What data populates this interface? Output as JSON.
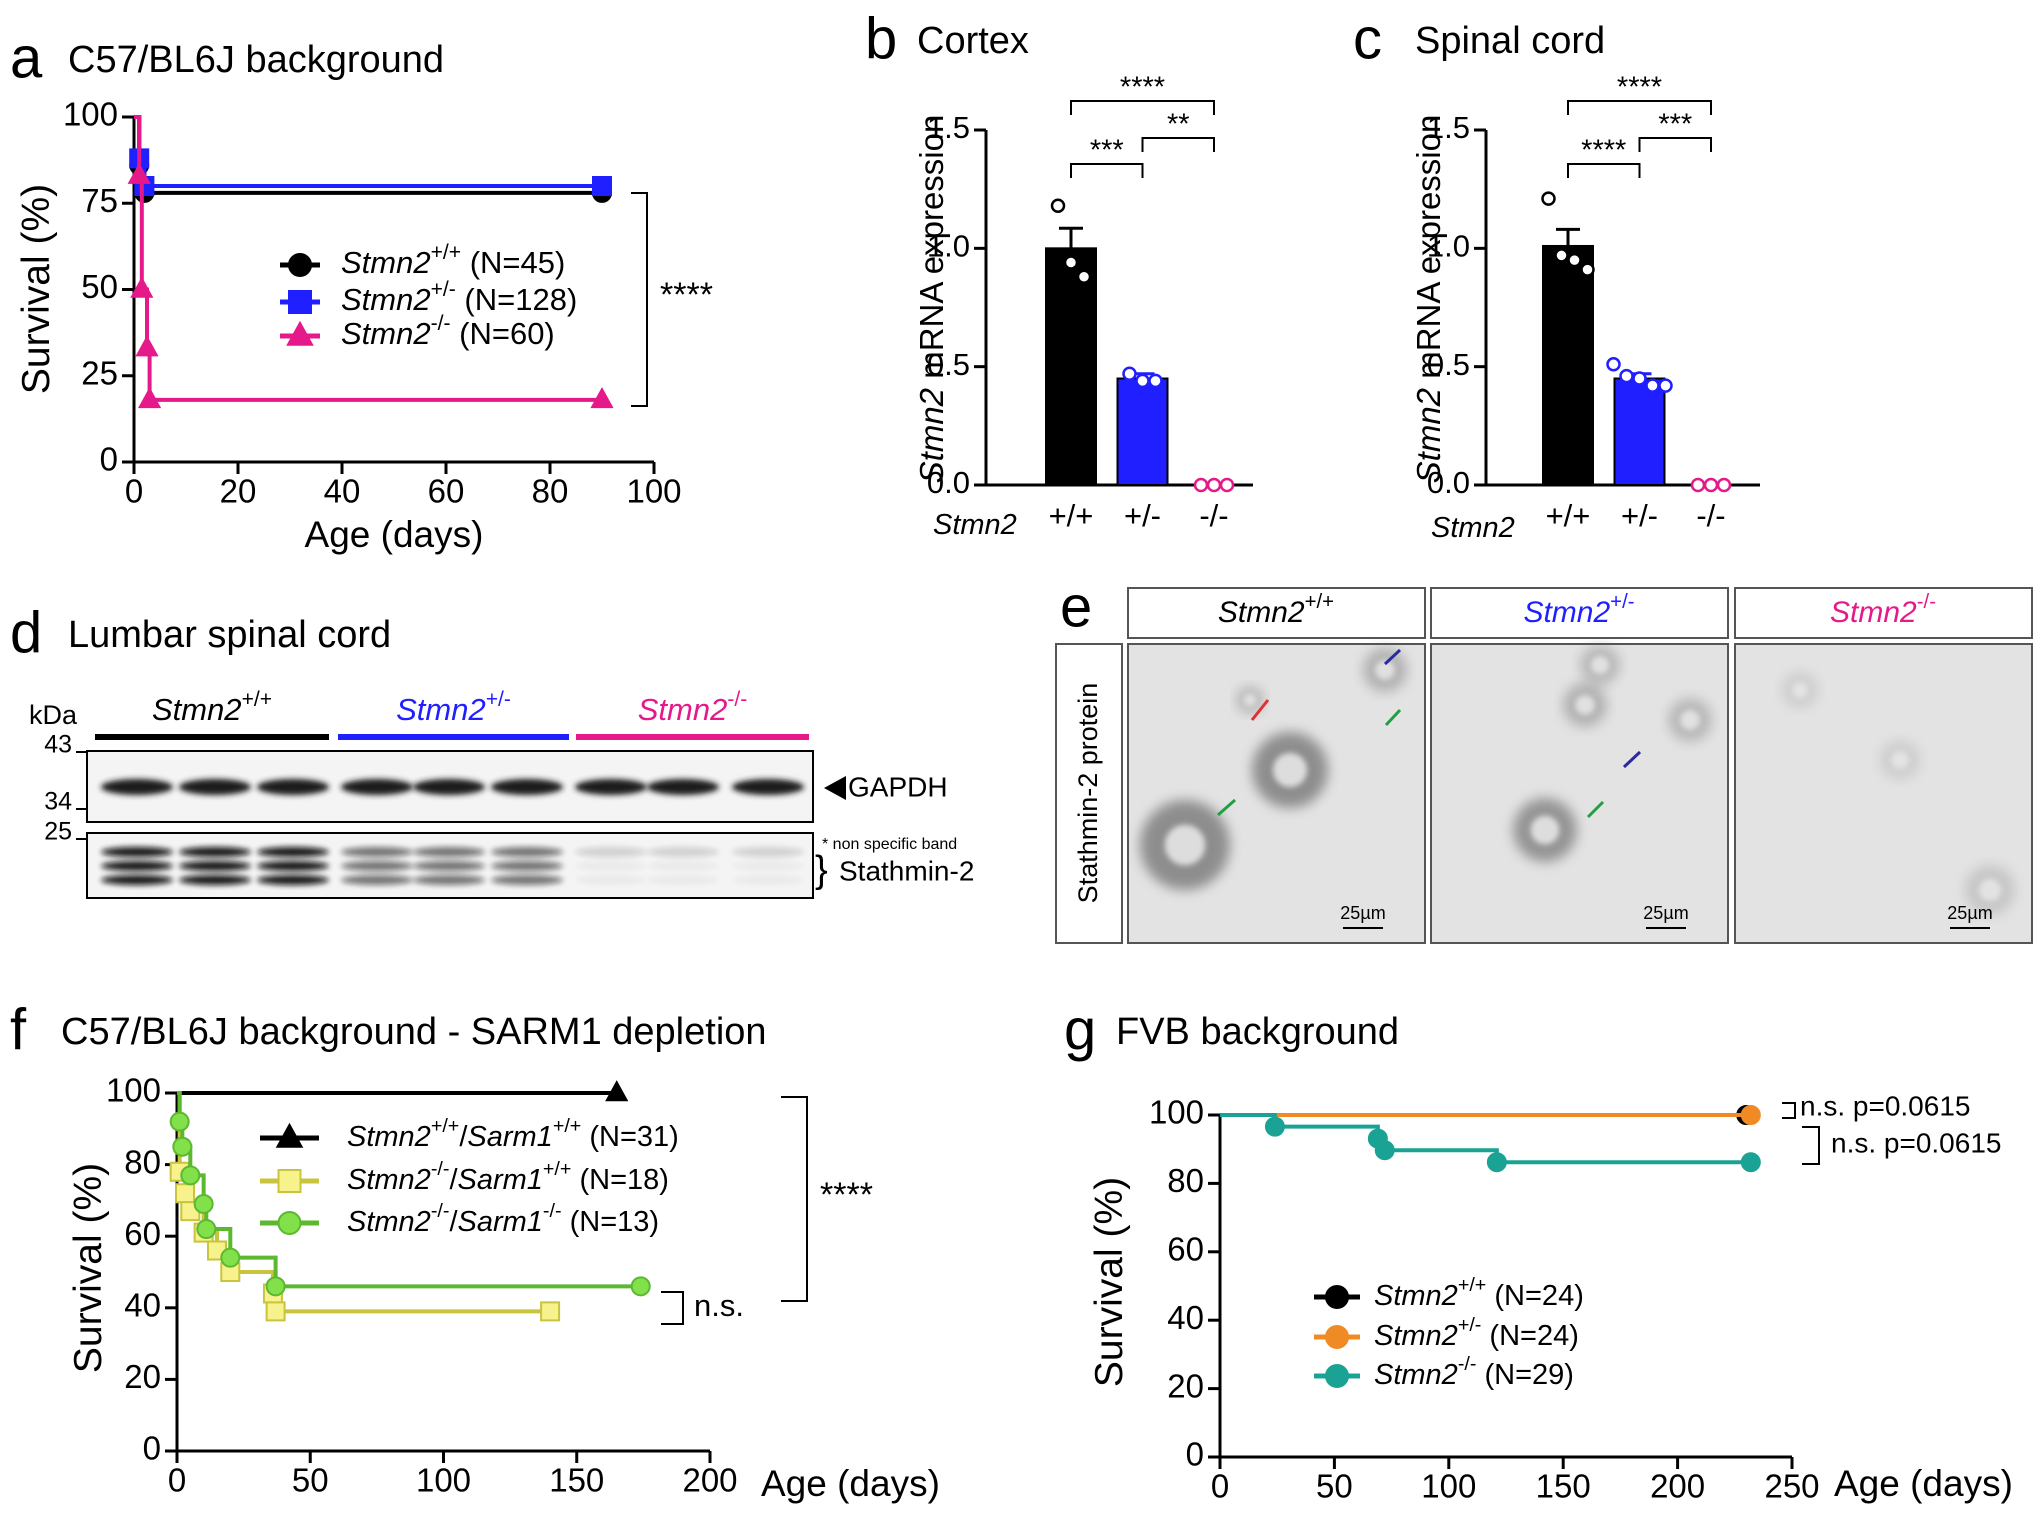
{
  "chart_data": [
    {
      "panel": "a",
      "type": "line",
      "step": true,
      "title": "C57/BL6J background",
      "xlabel": "Age (days)",
      "ylabel": "Survival (%)",
      "xlim": [
        0,
        100
      ],
      "xticks": [
        0,
        20,
        40,
        60,
        80,
        100
      ],
      "ylim": [
        0,
        100
      ],
      "yticks": [
        0,
        25,
        50,
        75,
        100
      ],
      "series": [
        {
          "name": "Stmn2+/+ (N=45)",
          "color": "#000000",
          "fill": "#000000",
          "marker": "circle",
          "x": [
            0,
            1,
            2,
            90
          ],
          "values": [
            100,
            86,
            78,
            78
          ]
        },
        {
          "name": "Stmn2+/- (N=128)",
          "color": "#1f1fff",
          "fill": "#1f1fff",
          "marker": "square",
          "x": [
            0,
            1,
            2,
            90
          ],
          "values": [
            100,
            88,
            80,
            80
          ]
        },
        {
          "name": "Stmn2-/- (N=60)",
          "color": "#e5198a",
          "fill": "#e5198a",
          "marker": "triangle",
          "x": [
            0,
            1,
            1.5,
            2.5,
            3,
            90
          ],
          "values": [
            100,
            83,
            50,
            33,
            18,
            18
          ]
        }
      ],
      "annotations": [
        "****"
      ]
    },
    {
      "panel": "b",
      "type": "bar",
      "title": "Cortex",
      "xlabel": "Stmn2",
      "ylabel": "Stmn2 mRNA expression",
      "categories": [
        "+/+",
        "+/-",
        "-/-"
      ],
      "values": [
        1.0,
        0.45,
        0
      ],
      "errors": [
        0.085,
        0.02,
        0
      ],
      "points": [
        [
          1.18,
          0.94,
          0.88
        ],
        [
          0.47,
          0.44,
          0.44
        ],
        [
          0,
          0,
          0
        ]
      ],
      "colors": [
        "#000000",
        "#1f1fff",
        "#e5198a"
      ],
      "ylim": [
        0,
        1.5
      ],
      "yticks": [
        {
          "value": 0,
          "label": "0.0"
        },
        0.5,
        {
          "value": 1,
          "label": "1.0"
        },
        1.5
      ],
      "annotations": [
        "****",
        "***",
        "**"
      ]
    },
    {
      "panel": "c",
      "type": "bar",
      "title": "Spinal cord",
      "xlabel": "Stmn2",
      "ylabel": "Stmn2 mRNA expression",
      "categories": [
        "+/+",
        "+/-",
        "-/-"
      ],
      "values": [
        1.01,
        0.45,
        0
      ],
      "errors": [
        0.07,
        0.02,
        0
      ],
      "points": [
        [
          1.21,
          0.97,
          0.95,
          0.91
        ],
        [
          0.51,
          0.46,
          0.45,
          0.42,
          0.42
        ],
        [
          0,
          0,
          0
        ]
      ],
      "colors": [
        "#000000",
        "#1f1fff",
        "#e5198a"
      ],
      "ylim": [
        0,
        1.5
      ],
      "yticks": [
        {
          "value": 0,
          "label": "0.0"
        },
        0.5,
        {
          "value": 1,
          "label": "1.0"
        },
        1.5
      ],
      "annotations": [
        "****",
        "****",
        "***"
      ]
    },
    {
      "panel": "f",
      "type": "line",
      "step": true,
      "title": "C57/BL6J background - SARM1 depletion",
      "xlabel": "Age (days)",
      "ylabel": "Survival (%)",
      "xlim": [
        0,
        200
      ],
      "xticks": [
        0,
        50,
        100,
        150,
        200
      ],
      "ylim": [
        0,
        100
      ],
      "yticks": [
        0,
        20,
        40,
        60,
        80,
        100
      ],
      "series": [
        {
          "name": "Stmn2+/+/Sarm1+/+ (N=31)",
          "color": "#000000",
          "fill": "#000000",
          "marker": "triangle",
          "x": [
            0,
            165
          ],
          "values": [
            100,
            100
          ]
        },
        {
          "name": "Stmn2-/-/Sarm1+/+ (N=18)",
          "color": "#c8c43e",
          "fill": "#f7f28c",
          "marker": "square",
          "x": [
            0,
            1,
            3,
            5,
            10,
            15,
            20,
            36,
            37,
            140
          ],
          "values": [
            100,
            78,
            72,
            67,
            61,
            56,
            50,
            44,
            39,
            39
          ]
        },
        {
          "name": "Stmn2-/-/Sarm1-/- (N=13)",
          "color": "#5cb82e",
          "fill": "#82e04a",
          "marker": "circle",
          "x": [
            0,
            1,
            2,
            5,
            10,
            11,
            20,
            37,
            174
          ],
          "values": [
            100,
            92,
            85,
            77,
            69,
            62,
            54,
            46,
            46
          ]
        }
      ],
      "annotations": [
        "****",
        "n.s."
      ]
    },
    {
      "panel": "g",
      "type": "line",
      "step": true,
      "title": "FVB background",
      "xlabel": "Age (days)",
      "ylabel": "Survival (%)",
      "xlim": [
        0,
        250
      ],
      "xticks": [
        0,
        50,
        100,
        150,
        200,
        250
      ],
      "ylim": [
        0,
        100
      ],
      "yticks": [
        0,
        20,
        40,
        60,
        80,
        100
      ],
      "series": [
        {
          "name": "Stmn2+/+ (N=24)",
          "color": "#000000",
          "fill": "#000000",
          "marker": "circle",
          "x": [
            0,
            230
          ],
          "values": [
            100,
            100
          ]
        },
        {
          "name": "Stmn2+/- (N=24)",
          "color": "#f08a24",
          "fill": "#f08a24",
          "marker": "circle",
          "x": [
            0,
            232
          ],
          "values": [
            100,
            100
          ]
        },
        {
          "name": "Stmn2-/- (N=29)",
          "color": "#1aa394",
          "fill": "#1aa394",
          "marker": "circle",
          "x": [
            0,
            24,
            69,
            72,
            121,
            232
          ],
          "values": [
            100,
            96.6,
            93.1,
            89.7,
            86.2,
            86.2
          ]
        }
      ],
      "annotations": [
        "n.s. p=0.0615",
        "n.s. p=0.0615"
      ]
    }
  ],
  "blot": {
    "panel": "d",
    "title": "Lumbar spinal cord",
    "unit": "kDa",
    "markers": [
      43,
      34,
      25
    ],
    "groups": [
      "Stmn2+/+",
      "Stmn2+/-",
      "Stmn2-/-"
    ],
    "group_colors": [
      "#000000",
      "#1f1fff",
      "#e5198a"
    ],
    "bands": [
      "GAPDH",
      "Stathmin-2"
    ],
    "note": "* non specific band"
  },
  "micrographs": {
    "panel": "e",
    "headers": [
      "Stmn2+/+",
      "Stmn2+/-",
      "Stmn2-/-"
    ],
    "header_colors": [
      "#000000",
      "#1f1fff",
      "#e5198a"
    ],
    "stain": "Stathmin-2 protein",
    "scale_bars": [
      "25µm",
      "25µm",
      "25µm"
    ]
  }
}
